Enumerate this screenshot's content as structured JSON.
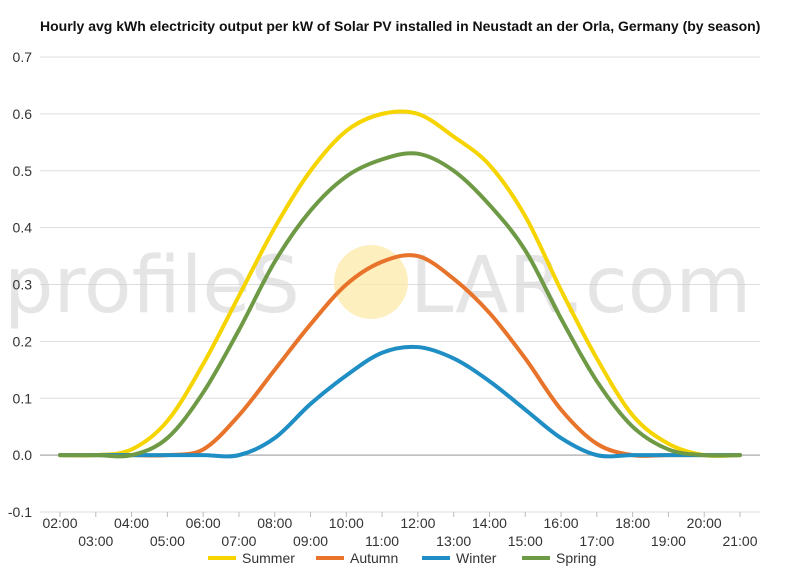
{
  "chart_data": {
    "type": "line",
    "title": "Hourly avg kWh electricity output per kW of Solar PV installed in Neustadt an der Orla, Germany (by season)",
    "xlabel": "",
    "ylabel": "",
    "ylim": [
      -0.1,
      0.7
    ],
    "yticks": [
      "-0.1",
      "0.0",
      "0.1",
      "0.2",
      "0.3",
      "0.4",
      "0.5",
      "0.6",
      "0.7"
    ],
    "x": [
      "02:00",
      "03:00",
      "04:00",
      "05:00",
      "06:00",
      "07:00",
      "08:00",
      "09:00",
      "10:00",
      "11:00",
      "12:00",
      "13:00",
      "14:00",
      "15:00",
      "16:00",
      "17:00",
      "18:00",
      "19:00",
      "20:00",
      "21:00"
    ],
    "grid": true,
    "legend_position": "bottom",
    "series": [
      {
        "name": "Summer",
        "color": "#f5d400",
        "values": [
          0.0,
          0.0,
          0.01,
          0.06,
          0.16,
          0.28,
          0.4,
          0.5,
          0.57,
          0.6,
          0.6,
          0.56,
          0.51,
          0.42,
          0.29,
          0.17,
          0.07,
          0.02,
          0.0,
          0.0
        ]
      },
      {
        "name": "Autumn",
        "color": "#e8732a",
        "values": [
          0.0,
          0.0,
          0.0,
          0.0,
          0.01,
          0.07,
          0.15,
          0.23,
          0.3,
          0.34,
          0.35,
          0.31,
          0.25,
          0.17,
          0.08,
          0.02,
          0.0,
          0.0,
          0.0,
          0.0
        ]
      },
      {
        "name": "Winter",
        "color": "#1f8ec4",
        "values": [
          0.0,
          0.0,
          0.0,
          0.0,
          0.0,
          0.0,
          0.03,
          0.09,
          0.14,
          0.18,
          0.19,
          0.17,
          0.13,
          0.08,
          0.03,
          0.0,
          0.0,
          0.0,
          0.0,
          0.0
        ]
      },
      {
        "name": "Spring",
        "color": "#6f9a45",
        "values": [
          0.0,
          0.0,
          0.0,
          0.03,
          0.11,
          0.22,
          0.34,
          0.43,
          0.49,
          0.52,
          0.53,
          0.5,
          0.44,
          0.36,
          0.24,
          0.13,
          0.05,
          0.01,
          0.0,
          0.0
        ]
      }
    ]
  },
  "watermark": {
    "left_text": "profileS",
    "right_text": "LAR.com",
    "sun_color": "#fde9a8"
  }
}
